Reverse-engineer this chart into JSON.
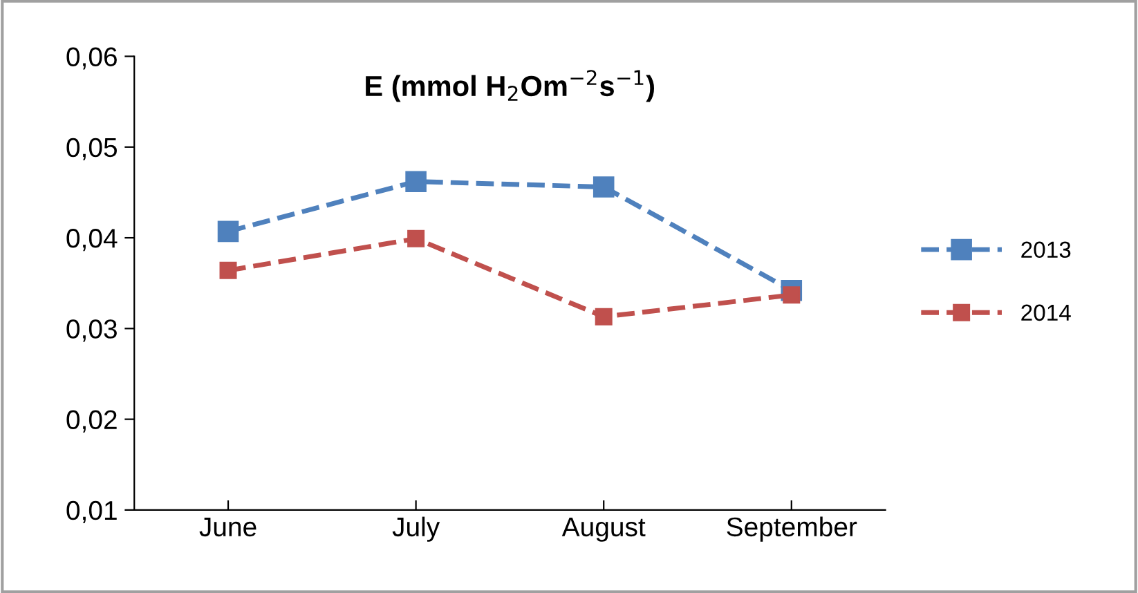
{
  "chart_data": {
    "type": "line",
    "title": "E (mmol H$_{2}$Om$^{−2}$s$^{−1}$)",
    "categories": [
      "June",
      "July",
      "August",
      "September"
    ],
    "series": [
      {
        "name": "2013",
        "color": "#4f81bd",
        "values": [
          0.0407,
          0.0462,
          0.0456,
          0.0342
        ]
      },
      {
        "name": "2014",
        "color": "#c0504d",
        "values": [
          0.0364,
          0.0399,
          0.0313,
          0.0337
        ]
      }
    ],
    "ylim": [
      0.01,
      0.06
    ],
    "yticks": [
      {
        "value": 0.01,
        "label": "0,01"
      },
      {
        "value": 0.02,
        "label": "0,02"
      },
      {
        "value": 0.03,
        "label": "0,03"
      },
      {
        "value": 0.04,
        "label": "0,04"
      },
      {
        "value": 0.05,
        "label": "0,05"
      },
      {
        "value": 0.06,
        "label": "0,06"
      }
    ],
    "grid": false,
    "legend": "right",
    "marker": "square",
    "line_style": "dashed"
  }
}
